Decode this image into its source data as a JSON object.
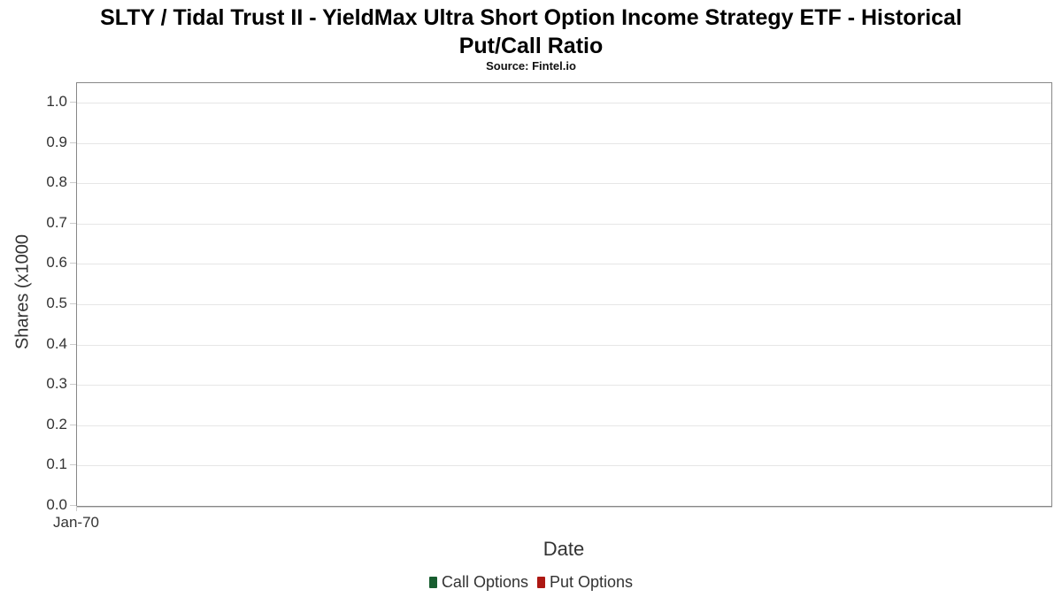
{
  "header": {
    "title": "SLTY / Tidal Trust II - YieldMax Ultra Short Option Income Strategy ETF - Historical Put/Call Ratio",
    "title_lines": [
      "SLTY / Tidal Trust II - YieldMax Ultra Short Option Income Strategy ETF - Historical",
      "Put/Call Ratio"
    ],
    "subtitle": "Source: Fintel.io"
  },
  "chart_data": {
    "type": "line",
    "title": "SLTY / Tidal Trust II - YieldMax Ultra Short Option Income Strategy ETF - Historical Put/Call Ratio",
    "subtitle": "Source: Fintel.io",
    "xlabel": "Date",
    "ylabel": "Shares (x1000",
    "x_tick_labels": [
      "Jan-70"
    ],
    "y_tick_labels": [
      "0.0",
      "0.1",
      "0.2",
      "0.3",
      "0.4",
      "0.5",
      "0.6",
      "0.7",
      "0.8",
      "0.9",
      "1.0"
    ],
    "y_ticks": [
      0.0,
      0.1,
      0.2,
      0.3,
      0.4,
      0.5,
      0.6,
      0.7,
      0.8,
      0.9,
      1.0
    ],
    "ylim": [
      0.0,
      1.048
    ],
    "grid": true,
    "legend_position": "bottom",
    "series": [
      {
        "name": "Call Options",
        "color": "#175d2f",
        "x": [],
        "values": []
      },
      {
        "name": "Put Options",
        "color": "#ad1813",
        "x": [],
        "values": []
      }
    ]
  },
  "legend": {
    "items": [
      {
        "label": "Call Options",
        "color": "#175d2f"
      },
      {
        "label": "Put Options",
        "color": "#ad1813"
      }
    ]
  },
  "colors": {
    "call_green": "#175d2f",
    "put_red": "#ad1813",
    "plot_border": "#878787",
    "gridline": "#e6e6e6",
    "tick": "#cccccc",
    "axis_text": "#333333"
  }
}
